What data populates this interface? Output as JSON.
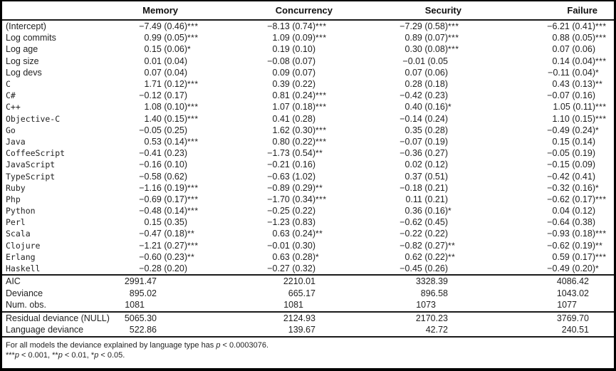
{
  "table": {
    "columns": [
      "Memory",
      "Concurrency",
      "Security",
      "Failure"
    ],
    "coef_rows": [
      {
        "label": "(Intercept)",
        "mono": false,
        "cells": [
          [
            "−7.49 (0.46)",
            "***"
          ],
          [
            "−8.13 (0.74)",
            "***"
          ],
          [
            "−7.29 (0.58)",
            "***"
          ],
          [
            "−6.21 (0.41)",
            "***"
          ]
        ]
      },
      {
        "label": "Log commits",
        "mono": false,
        "cells": [
          [
            "0.99 (0.05)",
            "***"
          ],
          [
            "1.09 (0.09)",
            "***"
          ],
          [
            "0.89 (0.07)",
            "***"
          ],
          [
            "0.88 (0.05)",
            "***"
          ]
        ]
      },
      {
        "label": "Log age",
        "mono": false,
        "cells": [
          [
            "0.15 (0.06)",
            "*"
          ],
          [
            "0.19 (0.10)",
            ""
          ],
          [
            "0.30 (0.08)",
            "***"
          ],
          [
            "0.07 (0.06)",
            ""
          ]
        ]
      },
      {
        "label": "Log size",
        "mono": false,
        "cells": [
          [
            "0.01 (0.04)",
            ""
          ],
          [
            "−0.08 (0.07)",
            ""
          ],
          [
            "−0.01 (0.05",
            ""
          ],
          [
            "0.14 (0.04)",
            "***"
          ]
        ]
      },
      {
        "label": "Log devs",
        "mono": false,
        "cells": [
          [
            "0.07 (0.04)",
            ""
          ],
          [
            "0.09 (0.07)",
            ""
          ],
          [
            "0.07 (0.06)",
            ""
          ],
          [
            "−0.11 (0.04)",
            "*"
          ]
        ]
      },
      {
        "label": "C",
        "mono": true,
        "cells": [
          [
            "1.71 (0.12)",
            "***"
          ],
          [
            "0.39 (0.22)",
            ""
          ],
          [
            "0.28 (0.18)",
            ""
          ],
          [
            "0.43 (0.13)",
            "**"
          ]
        ]
      },
      {
        "label": "C#",
        "mono": true,
        "cells": [
          [
            "−0.12 (0.17)",
            ""
          ],
          [
            "0.81 (0.24)",
            "***"
          ],
          [
            "−0.42 (0.23)",
            ""
          ],
          [
            "−0.07 (0.16)",
            ""
          ]
        ]
      },
      {
        "label": "C++",
        "mono": true,
        "cells": [
          [
            "1.08 (0.10)",
            "***"
          ],
          [
            "1.07 (0.18)",
            "***"
          ],
          [
            "0.40 (0.16)",
            "*"
          ],
          [
            "1.05 (0.11)",
            "***"
          ]
        ]
      },
      {
        "label": "Objective-C",
        "mono": true,
        "cells": [
          [
            "1.40 (0.15)",
            "***"
          ],
          [
            "0.41 (0.28)",
            ""
          ],
          [
            "−0.14 (0.24)",
            ""
          ],
          [
            "1.10 (0.15)",
            "***"
          ]
        ]
      },
      {
        "label": "Go",
        "mono": true,
        "cells": [
          [
            "−0.05 (0.25)",
            ""
          ],
          [
            "1.62 (0.30)",
            "***"
          ],
          [
            "0.35 (0.28)",
            ""
          ],
          [
            "−0.49 (0.24)",
            "*"
          ]
        ]
      },
      {
        "label": "Java",
        "mono": true,
        "cells": [
          [
            "0.53 (0.14)",
            "***"
          ],
          [
            "0.80 (0.22)",
            "***"
          ],
          [
            "−0.07 (0.19)",
            ""
          ],
          [
            "0.15 (0.14)",
            ""
          ]
        ]
      },
      {
        "label": "CoffeeScript",
        "mono": true,
        "cells": [
          [
            "−0.41 (0.23)",
            ""
          ],
          [
            "−1.73 (0.54)",
            "**"
          ],
          [
            "−0.36 (0.27)",
            ""
          ],
          [
            "−0.05 (0.19)",
            ""
          ]
        ]
      },
      {
        "label": "JavaScript",
        "mono": true,
        "cells": [
          [
            "−0.16 (0.10)",
            ""
          ],
          [
            "−0.21 (0.16)",
            ""
          ],
          [
            "0.02 (0.12)",
            ""
          ],
          [
            "−0.15 (0.09)",
            ""
          ]
        ]
      },
      {
        "label": "TypeScript",
        "mono": true,
        "cells": [
          [
            "−0.58 (0.62)",
            ""
          ],
          [
            "−0.63 (1.02)",
            ""
          ],
          [
            "0.37 (0.51)",
            ""
          ],
          [
            "−0.42 (0.41)",
            ""
          ]
        ]
      },
      {
        "label": "Ruby",
        "mono": true,
        "cells": [
          [
            "−1.16 (0.19)",
            "***"
          ],
          [
            "−0.89 (0.29)",
            "**"
          ],
          [
            "−0.18 (0.21)",
            ""
          ],
          [
            "−0.32 (0.16)",
            "*"
          ]
        ]
      },
      {
        "label": "Php",
        "mono": true,
        "cells": [
          [
            "−0.69 (0.17)",
            "***"
          ],
          [
            "−1.70 (0.34)",
            "***"
          ],
          [
            "0.11 (0.21)",
            ""
          ],
          [
            "−0.62 (0.17)",
            "***"
          ]
        ]
      },
      {
        "label": "Python",
        "mono": true,
        "cells": [
          [
            "−0.48 (0.14)",
            "***"
          ],
          [
            "−0.25 (0.22)",
            ""
          ],
          [
            "0.36 (0.16)",
            "*"
          ],
          [
            "0.04 (0.12)",
            ""
          ]
        ]
      },
      {
        "label": "Perl",
        "mono": true,
        "cells": [
          [
            "0.15 (0.35)",
            ""
          ],
          [
            "−1.23 (0.83)",
            ""
          ],
          [
            "−0.62 (0.45)",
            ""
          ],
          [
            "−0.64 (0.38)",
            ""
          ]
        ]
      },
      {
        "label": "Scala",
        "mono": true,
        "cells": [
          [
            "−0.47 (0.18)",
            "**"
          ],
          [
            "0.63 (0.24)",
            "**"
          ],
          [
            "−0.22 (0.22)",
            ""
          ],
          [
            "−0.93 (0.18)",
            "***"
          ]
        ]
      },
      {
        "label": "Clojure",
        "mono": true,
        "cells": [
          [
            "−1.21 (0.27)",
            "***"
          ],
          [
            "−0.01 (0.30)",
            ""
          ],
          [
            "−0.82 (0.27)",
            "**"
          ],
          [
            "−0.62 (0.19)",
            "**"
          ]
        ]
      },
      {
        "label": "Erlang",
        "mono": true,
        "cells": [
          [
            "−0.60 (0.23)",
            "**"
          ],
          [
            "0.63 (0.28)",
            "*"
          ],
          [
            "0.62 (0.22)",
            "**"
          ],
          [
            "0.59 (0.17)",
            "***"
          ]
        ]
      },
      {
        "label": "Haskell",
        "mono": true,
        "cells": [
          [
            "−0.28 (0.20)",
            ""
          ],
          [
            "−0.27 (0.32)",
            ""
          ],
          [
            "−0.45 (0.26)",
            ""
          ],
          [
            "−0.49 (0.20)",
            "*"
          ]
        ]
      }
    ],
    "summary_groups": [
      {
        "rows": [
          {
            "label": "AIC",
            "cells": [
              "2991.47",
              "2210.01",
              "3328.39",
              "4086.42"
            ]
          },
          {
            "label": "Deviance",
            "cells": [
              "895.02",
              "665.17",
              "896.58",
              "1043.02"
            ]
          },
          {
            "label": "Num. obs.",
            "cells": [
              "1081",
              "1081",
              "1073",
              "1077"
            ]
          }
        ]
      },
      {
        "rows": [
          {
            "label": "Residual deviance (NULL)",
            "cells": [
              "5065.30",
              "2124.93",
              "2170.23",
              "3769.70"
            ]
          },
          {
            "label": "Language deviance",
            "cells": [
              "522.86",
              "139.67",
              "42.72",
              "240.51"
            ]
          }
        ]
      }
    ]
  },
  "footnotes": [
    {
      "segments": [
        {
          "t": "For all models the deviance explained by language type has "
        },
        {
          "t": "p",
          "i": true
        },
        {
          "t": " < 0.0003076."
        }
      ]
    },
    {
      "segments": [
        {
          "t": "***"
        },
        {
          "t": "p",
          "i": true
        },
        {
          "t": " < 0.001, **"
        },
        {
          "t": "p",
          "i": true
        },
        {
          "t": " < 0.01, *"
        },
        {
          "t": "p",
          "i": true
        },
        {
          "t": " < 0.05."
        }
      ]
    }
  ]
}
